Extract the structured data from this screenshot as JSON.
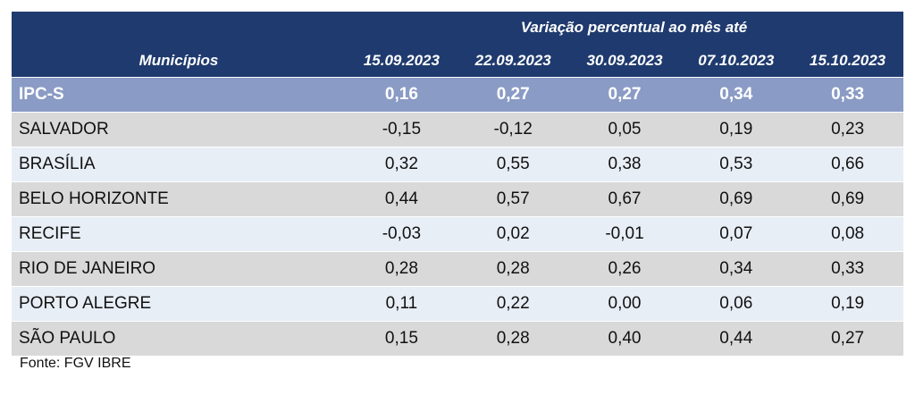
{
  "header": {
    "super_title": "Variação percentual ao mês até",
    "label_col": "Municípios",
    "dates": [
      "15.09.2023",
      "22.09.2023",
      "30.09.2023",
      "07.10.2023",
      "15.10.2023"
    ]
  },
  "rows": [
    {
      "name": "IPC-S",
      "values": [
        "0,16",
        "0,27",
        "0,27",
        "0,34",
        "0,33"
      ]
    },
    {
      "name": "SALVADOR",
      "values": [
        "-0,15",
        "-0,12",
        "0,05",
        "0,19",
        "0,23"
      ]
    },
    {
      "name": "BRASÍLIA",
      "values": [
        "0,32",
        "0,55",
        "0,38",
        "0,53",
        "0,66"
      ]
    },
    {
      "name": "BELO HORIZONTE",
      "values": [
        "0,44",
        "0,57",
        "0,67",
        "0,69",
        "0,69"
      ]
    },
    {
      "name": "RECIFE",
      "values": [
        "-0,03",
        "0,02",
        "-0,01",
        "0,07",
        "0,08"
      ]
    },
    {
      "name": "RIO DE JANEIRO",
      "values": [
        "0,28",
        "0,28",
        "0,26",
        "0,34",
        "0,33"
      ]
    },
    {
      "name": "PORTO ALEGRE",
      "values": [
        "0,11",
        "0,22",
        "0,00",
        "0,06",
        "0,19"
      ]
    },
    {
      "name": "SÃO PAULO",
      "values": [
        "0,15",
        "0,28",
        "0,40",
        "0,44",
        "0,27"
      ]
    }
  ],
  "source": "Fonte: FGV IBRE",
  "colors": {
    "header_bg": "#1f3a6e",
    "ipc_bg": "#8a9bc5",
    "row_gray": "#d9d9d9",
    "row_light": "#e8eef6"
  }
}
